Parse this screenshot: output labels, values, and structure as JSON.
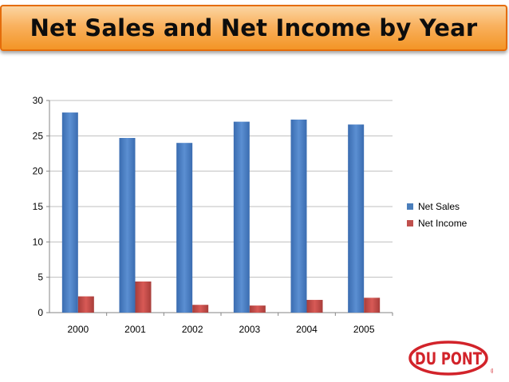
{
  "title": "Net Sales and Net Income by Year",
  "colors": {
    "net_sales": "#4a7ebb",
    "net_income": "#c0504d",
    "title_fill": "#f9b15e",
    "title_border": "#e46c0a",
    "logo_red": "#d2232a"
  },
  "logo": {
    "text": "DU PONT",
    "mark": "®"
  },
  "chart_data": {
    "type": "bar",
    "title": "Net Sales and Net Income by Year",
    "categories": [
      "2000",
      "2001",
      "2002",
      "2003",
      "2004",
      "2005"
    ],
    "series": [
      {
        "name": "Net Sales",
        "values": [
          28.3,
          24.7,
          24.0,
          27.0,
          27.3,
          26.6
        ]
      },
      {
        "name": "Net Income",
        "values": [
          2.3,
          4.4,
          1.1,
          1.0,
          1.8,
          2.1
        ]
      }
    ],
    "ylim": [
      0,
      30
    ],
    "yticks": [
      "0",
      "5",
      "10",
      "15",
      "20",
      "25",
      "30"
    ],
    "grid": true,
    "legend": "right"
  }
}
